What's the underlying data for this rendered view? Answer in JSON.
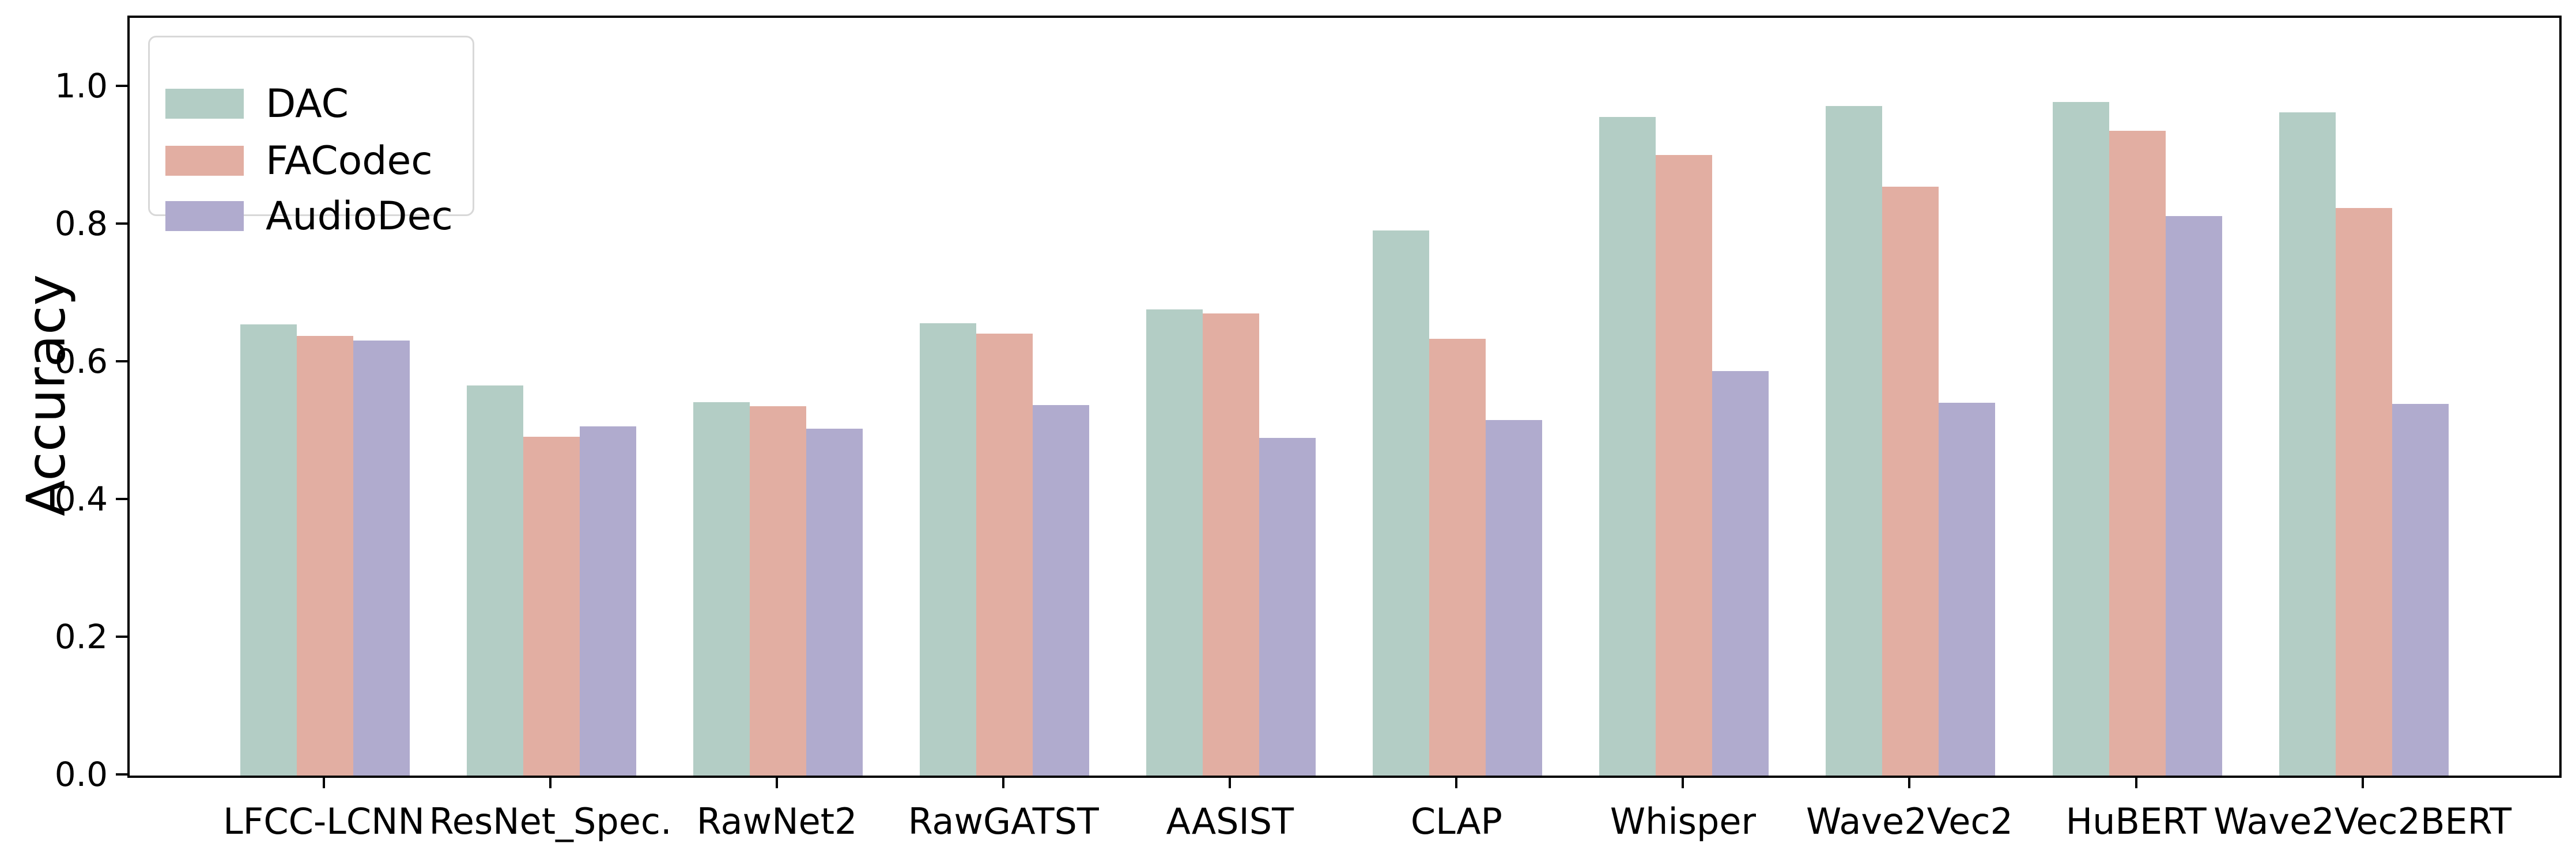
{
  "figure": {
    "ylabel": "Accuracy"
  },
  "legend": {
    "position": "upper left",
    "items": [
      {
        "label": "DAC",
        "color": "#b3cdc5"
      },
      {
        "label": "FACodec",
        "color": "#e2aea2"
      },
      {
        "label": "AudioDec",
        "color": "#b0abce"
      }
    ]
  },
  "chart_data": {
    "type": "bar",
    "title": "",
    "xlabel": "",
    "ylabel": "Accuracy",
    "ylim": [
      0,
      1.1
    ],
    "yticks": [
      "0.0",
      "0.2",
      "0.4",
      "0.6",
      "0.8",
      "1.0"
    ],
    "ytick_values": [
      0.0,
      0.2,
      0.4,
      0.6,
      0.8,
      1.0
    ],
    "grid": false,
    "legend_position": "upper left",
    "categories": [
      "LFCC-LCNN",
      "ResNet_Spec.",
      "RawNet2",
      "RawGATST",
      "AASIST",
      "CLAP",
      "Whisper",
      "Wave2Vec2",
      "HuBERT",
      "Wave2Vec2BERT"
    ],
    "series": [
      {
        "name": "DAC",
        "color": "#b3cdc5",
        "values": [
          0.655,
          0.566,
          0.542,
          0.657,
          0.677,
          0.791,
          0.956,
          0.972,
          0.978,
          0.963
        ]
      },
      {
        "name": "FACodec",
        "color": "#e2aea2",
        "values": [
          0.638,
          0.492,
          0.536,
          0.642,
          0.671,
          0.634,
          0.901,
          0.855,
          0.936,
          0.824
        ]
      },
      {
        "name": "AudioDec",
        "color": "#b0abce",
        "values": [
          0.632,
          0.507,
          0.504,
          0.538,
          0.49,
          0.516,
          0.587,
          0.541,
          0.812,
          0.54
        ]
      }
    ]
  }
}
